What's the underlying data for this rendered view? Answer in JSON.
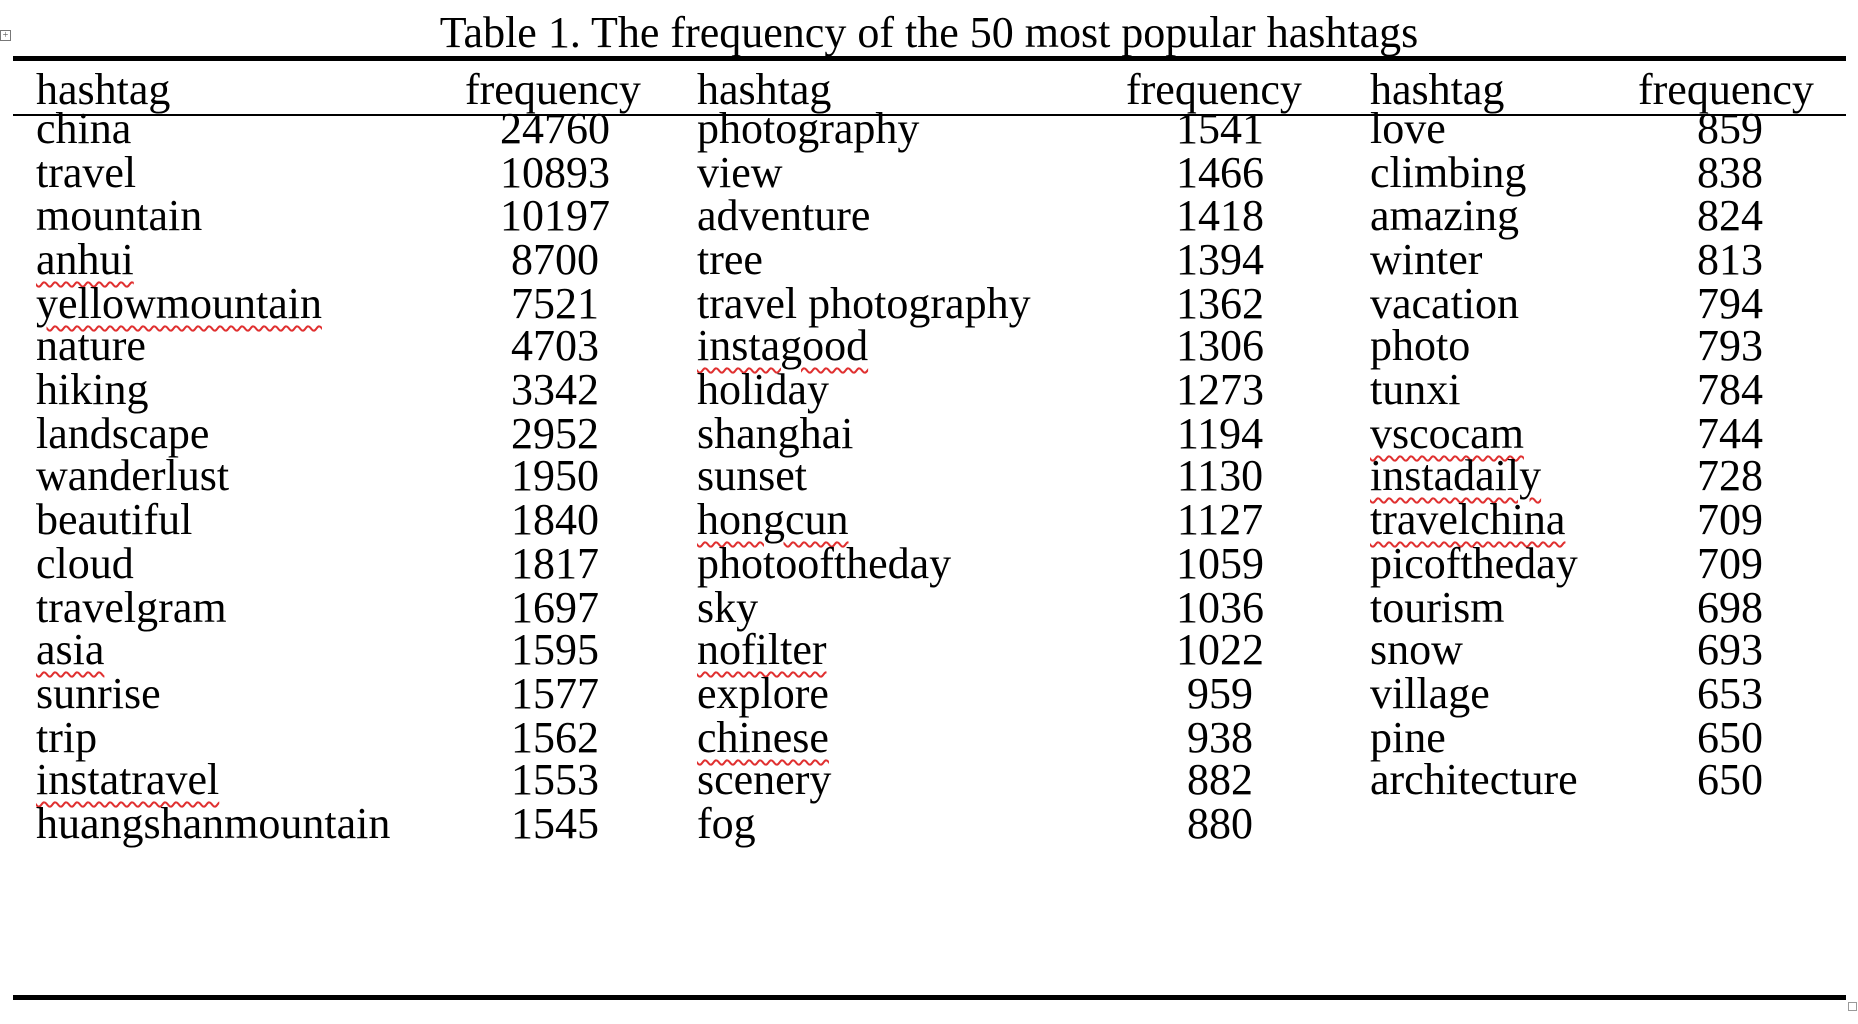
{
  "caption": "Table 1. The frequency of the 50 most popular hashtags",
  "columns": [
    "hashtag",
    "frequency",
    "hashtag",
    "frequency",
    "hashtag",
    "frequency"
  ],
  "spellcheck_flagged": [
    "anhui",
    "yellowmountain",
    "asia",
    "instatravel",
    "instagood",
    "hongcun",
    "nofilter",
    "chinese",
    "vscocam",
    "instadaily",
    "travelchina"
  ],
  "rows": [
    [
      "china",
      "24760",
      "photography",
      "1541",
      "love",
      "859"
    ],
    [
      "travel",
      "10893",
      "view",
      "1466",
      "climbing",
      "838"
    ],
    [
      "mountain",
      "10197",
      "adventure",
      "1418",
      "amazing",
      "824"
    ],
    [
      "anhui",
      "8700",
      "tree",
      "1394",
      "winter",
      "813"
    ],
    [
      "yellowmountain",
      "7521",
      "travel photography",
      "1362",
      "vacation",
      "794"
    ],
    [
      "nature",
      "4703",
      "instagood",
      "1306",
      "photo",
      "793"
    ],
    [
      "hiking",
      "3342",
      "holiday",
      "1273",
      "tunxi",
      "784"
    ],
    [
      "landscape",
      "2952",
      "shanghai",
      "1194",
      "vscocam",
      "744"
    ],
    [
      "wanderlust",
      "1950",
      "sunset",
      "1130",
      "instadaily",
      "728"
    ],
    [
      "beautiful",
      "1840",
      "hongcun",
      "1127",
      "travelchina",
      "709"
    ],
    [
      "cloud",
      "1817",
      "photooftheday",
      "1059",
      "picoftheday",
      "709"
    ],
    [
      "travelgram",
      "1697",
      "sky",
      "1036",
      "tourism",
      "698"
    ],
    [
      "asia",
      "1595",
      "nofilter",
      "1022",
      "snow",
      "693"
    ],
    [
      "sunrise",
      "1577",
      "explore",
      "959",
      "village",
      "653"
    ],
    [
      "trip",
      "1562",
      "chinese",
      "938",
      "pine",
      "650"
    ],
    [
      "instatravel",
      "1553",
      "scenery",
      "882",
      "architecture",
      "650"
    ],
    [
      "huangshanmountain",
      "1545",
      "fog",
      "880",
      "",
      ""
    ]
  ]
}
